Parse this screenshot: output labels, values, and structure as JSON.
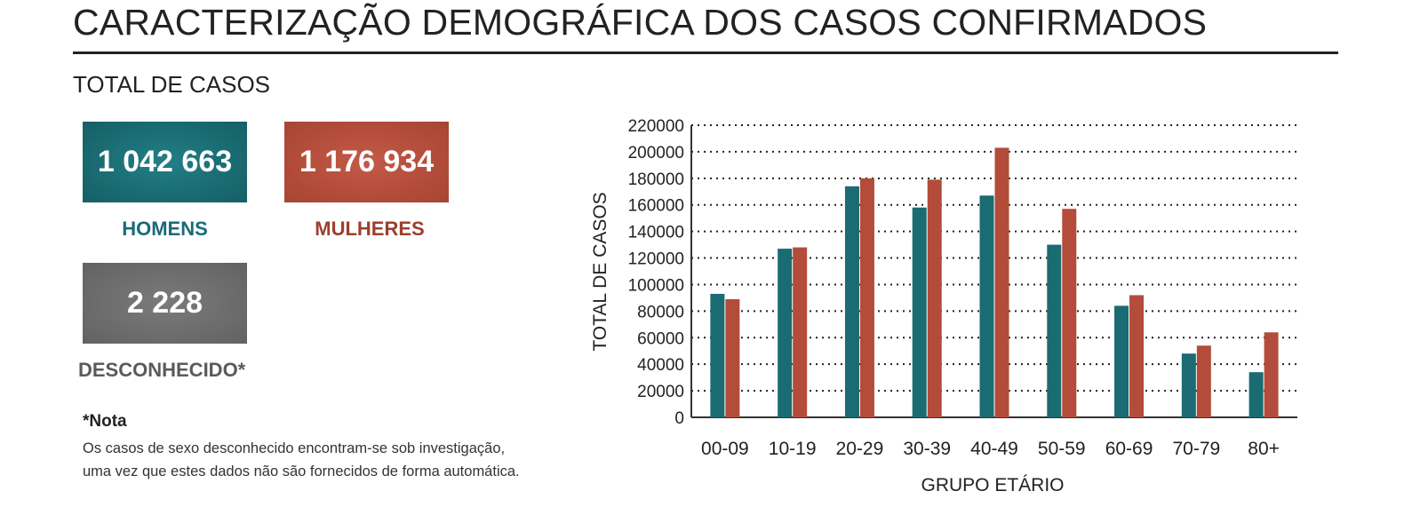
{
  "header": {
    "title": "CARACTERIZAÇÃO DEMOGRÁFICA DOS CASOS CONFIRMADOS",
    "section_title": "TOTAL DE CASOS"
  },
  "stats": {
    "men": {
      "value": "1 042 663",
      "label": "HOMENS",
      "color": "#1a6b72"
    },
    "women": {
      "value": "1 176 934",
      "label": "MULHERES",
      "color": "#b34c3a"
    },
    "unknown": {
      "value": "2 228",
      "label": "DESCONHECIDO*",
      "color": "#6c6c6c"
    }
  },
  "note": {
    "title": "*Nota",
    "line1": "Os casos de sexo desconhecido encontram-se sob investigação,",
    "line2": "uma vez que estes dados não são fornecidos de forma automática."
  },
  "chart_data": {
    "type": "bar",
    "xlabel": "GRUPO ETÁRIO",
    "ylabel": "TOTAL DE CASOS",
    "ylim": [
      0,
      220000
    ],
    "yticks": [
      0,
      20000,
      40000,
      60000,
      80000,
      100000,
      120000,
      140000,
      160000,
      180000,
      200000,
      220000
    ],
    "grid": "dotted horizontal",
    "categories": [
      "00-09",
      "10-19",
      "20-29",
      "30-39",
      "40-49",
      "50-59",
      "60-69",
      "70-79",
      "80+"
    ],
    "series": [
      {
        "values": [
          93000,
          127000,
          174000,
          158000,
          167000,
          130000,
          84000,
          48000,
          34000
        ],
        "color": "#1a6b72"
      },
      {
        "values": [
          89000,
          128000,
          180000,
          179000,
          203000,
          157000,
          92000,
          54000,
          64000
        ],
        "color": "#b34c3a"
      }
    ]
  }
}
